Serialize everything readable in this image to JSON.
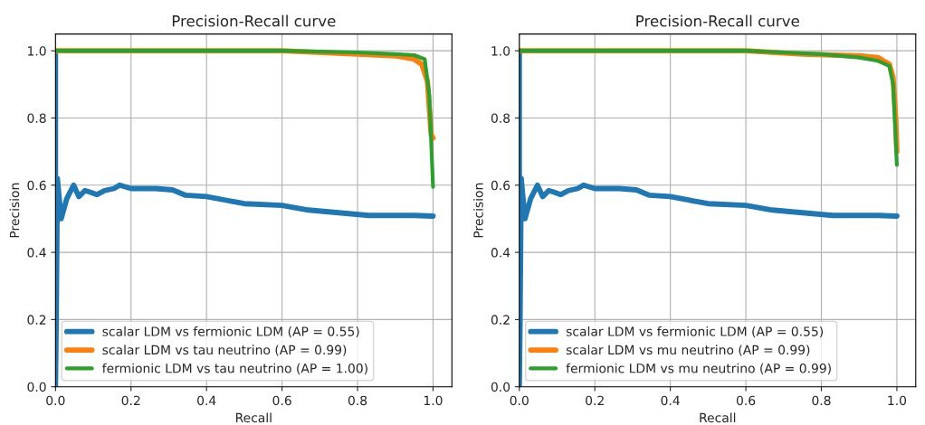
{
  "chart_data": [
    {
      "type": "line",
      "title": "Precision-Recall curve",
      "xlabel": "Recall",
      "ylabel": "Precision",
      "xlim": [
        0,
        1.05
      ],
      "ylim": [
        0,
        1.05
      ],
      "xticks": [
        {
          "value": 0,
          "label": "0.0"
        },
        {
          "value": 0.2,
          "label": "0.2"
        },
        {
          "value": 0.4,
          "label": "0.4"
        },
        {
          "value": 0.6,
          "label": "0.6"
        },
        {
          "value": 0.8,
          "label": "0.8"
        },
        {
          "value": 1,
          "label": "1.0"
        }
      ],
      "yticks": [
        {
          "value": 0,
          "label": "0.0"
        },
        {
          "value": 0.2,
          "label": "0.2"
        },
        {
          "value": 0.4,
          "label": "0.4"
        },
        {
          "value": 0.6,
          "label": "0.6"
        },
        {
          "value": 0.8,
          "label": "0.8"
        },
        {
          "value": 1,
          "label": "1.0"
        }
      ],
      "grid": true,
      "legend": "bottom left",
      "line_style": "solid",
      "marker": "none",
      "series": [
        {
          "name": "scalar LDM vs fermionic LDM (AP = 0.55)",
          "color": "#1f77b4",
          "x": [
            0,
            0,
            0.002,
            0.005,
            0.015,
            0.03,
            0.048,
            0.062,
            0.078,
            0.09,
            0.11,
            0.13,
            0.155,
            0.17,
            0.2,
            0.265,
            0.31,
            0.345,
            0.4,
            0.5,
            0.6,
            0.67,
            0.75,
            0.83,
            0.95,
            1.0
          ],
          "values": [
            1.0,
            0.0,
            0.2,
            0.62,
            0.5,
            0.56,
            0.6,
            0.566,
            0.584,
            0.58,
            0.572,
            0.584,
            0.59,
            0.6,
            0.59,
            0.59,
            0.586,
            0.57,
            0.566,
            0.545,
            0.54,
            0.526,
            0.518,
            0.51,
            0.51,
            0.508
          ]
        },
        {
          "name": "scalar LDM vs tau neutrino (AP = 0.99)",
          "color": "#ff7f0e",
          "x": [
            0,
            0.6,
            0.8,
            0.9,
            0.95,
            0.97,
            0.985,
            0.995,
            1.0
          ],
          "values": [
            1.0,
            1.0,
            0.99,
            0.985,
            0.975,
            0.96,
            0.91,
            0.75,
            0.74
          ]
        },
        {
          "name": "fermionic LDM vs tau neutrino (AP = 1.00)",
          "color": "#2ca02c",
          "x": [
            0,
            0.6,
            0.8,
            0.9,
            0.95,
            0.978,
            0.99,
            1.0
          ],
          "values": [
            1.0,
            1.0,
            0.995,
            0.99,
            0.987,
            0.975,
            0.87,
            0.595
          ]
        }
      ]
    },
    {
      "type": "line",
      "title": "Precision-Recall curve",
      "xlabel": "Recall",
      "ylabel": "Precision",
      "xlim": [
        0,
        1.05
      ],
      "ylim": [
        0,
        1.05
      ],
      "xticks": [
        {
          "value": 0,
          "label": "0.0"
        },
        {
          "value": 0.2,
          "label": "0.2"
        },
        {
          "value": 0.4,
          "label": "0.4"
        },
        {
          "value": 0.6,
          "label": "0.6"
        },
        {
          "value": 0.8,
          "label": "0.8"
        },
        {
          "value": 1,
          "label": "1.0"
        }
      ],
      "yticks": [
        {
          "value": 0,
          "label": "0.0"
        },
        {
          "value": 0.2,
          "label": "0.2"
        },
        {
          "value": 0.4,
          "label": "0.4"
        },
        {
          "value": 0.6,
          "label": "0.6"
        },
        {
          "value": 0.8,
          "label": "0.8"
        },
        {
          "value": 1,
          "label": "1.0"
        }
      ],
      "grid": true,
      "legend": "bottom left",
      "line_style": "solid",
      "marker": "none",
      "series": [
        {
          "name": "scalar LDM vs fermionic LDM (AP = 0.55)",
          "color": "#1f77b4",
          "x": [
            0,
            0,
            0.002,
            0.005,
            0.015,
            0.03,
            0.048,
            0.062,
            0.078,
            0.09,
            0.11,
            0.13,
            0.155,
            0.17,
            0.2,
            0.265,
            0.31,
            0.345,
            0.4,
            0.5,
            0.6,
            0.67,
            0.75,
            0.83,
            0.95,
            1.0
          ],
          "values": [
            1.0,
            0.0,
            0.2,
            0.62,
            0.5,
            0.56,
            0.6,
            0.566,
            0.584,
            0.58,
            0.572,
            0.584,
            0.59,
            0.6,
            0.59,
            0.59,
            0.586,
            0.57,
            0.566,
            0.545,
            0.54,
            0.526,
            0.518,
            0.51,
            0.51,
            0.508
          ]
        },
        {
          "name": "scalar LDM vs mu neutrino (AP = 0.99)",
          "color": "#ff7f0e",
          "x": [
            0,
            0.6,
            0.75,
            0.9,
            0.95,
            0.98,
            0.99,
            0.997,
            1.0
          ],
          "values": [
            1.0,
            1.0,
            0.99,
            0.985,
            0.98,
            0.96,
            0.92,
            0.8,
            0.7
          ]
        },
        {
          "name": "fermionic LDM vs mu neutrino (AP = 0.99)",
          "color": "#2ca02c",
          "x": [
            0,
            0.6,
            0.7,
            0.8,
            0.9,
            0.95,
            0.98,
            0.99,
            1.0
          ],
          "values": [
            1.0,
            1.0,
            0.995,
            0.99,
            0.98,
            0.97,
            0.955,
            0.9,
            0.66
          ]
        }
      ]
    }
  ]
}
